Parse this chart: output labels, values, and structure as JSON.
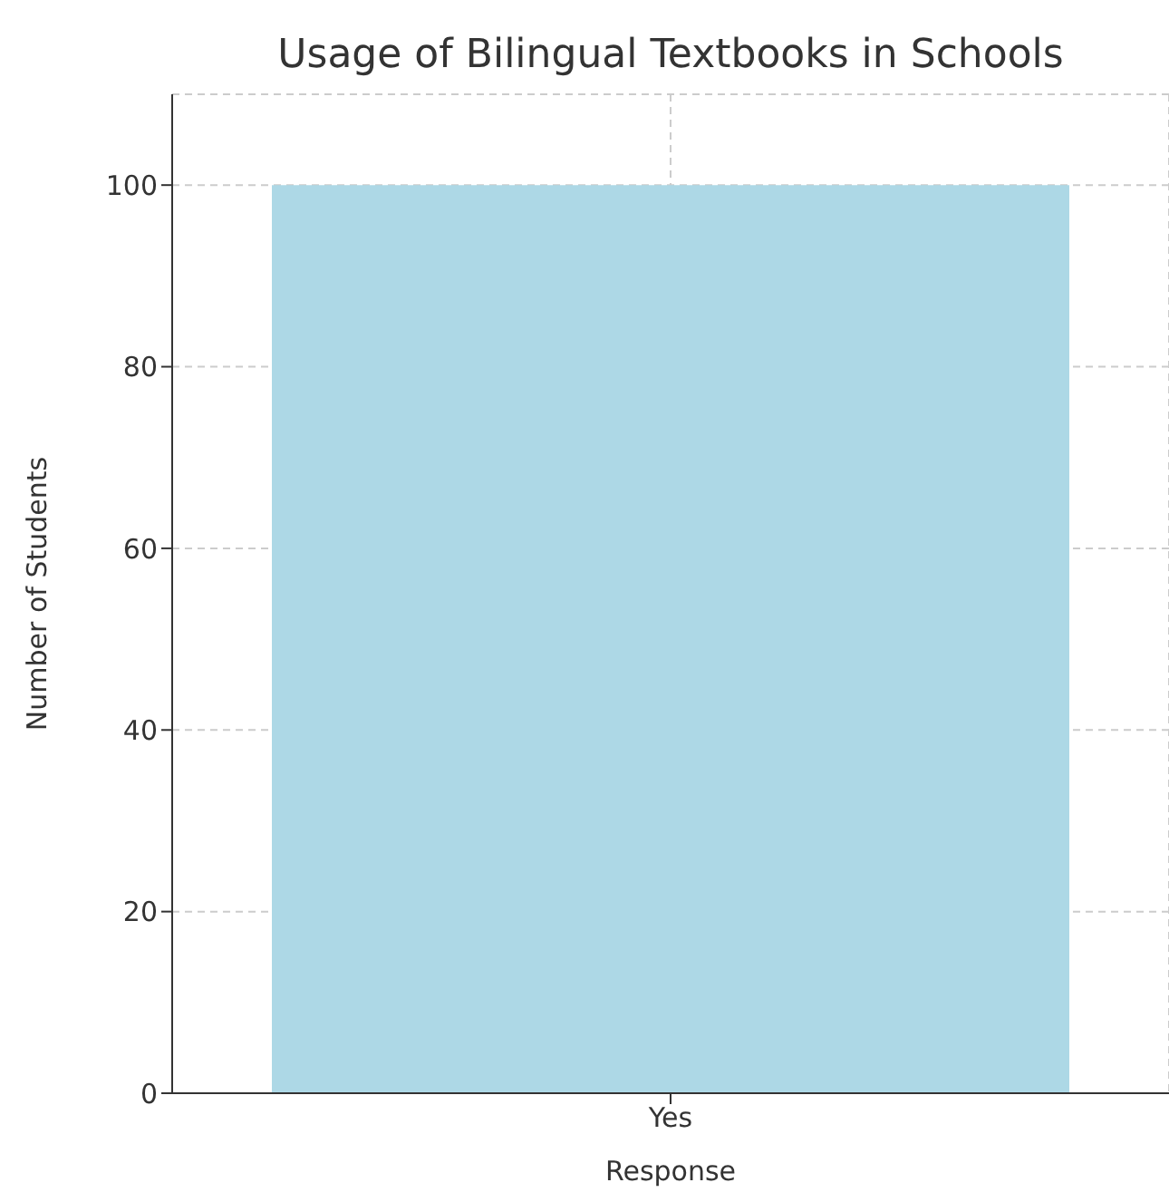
{
  "chart_data": {
    "type": "bar",
    "title": "Usage of Bilingual Textbooks in Schools",
    "xlabel": "Response",
    "ylabel": "Number of Students",
    "categories": [
      "Yes"
    ],
    "values": [
      100
    ],
    "color": "#add8e6",
    "ylim": [
      0,
      110
    ],
    "yticks": [
      0,
      20,
      40,
      60,
      80,
      100
    ],
    "grid": true
  }
}
